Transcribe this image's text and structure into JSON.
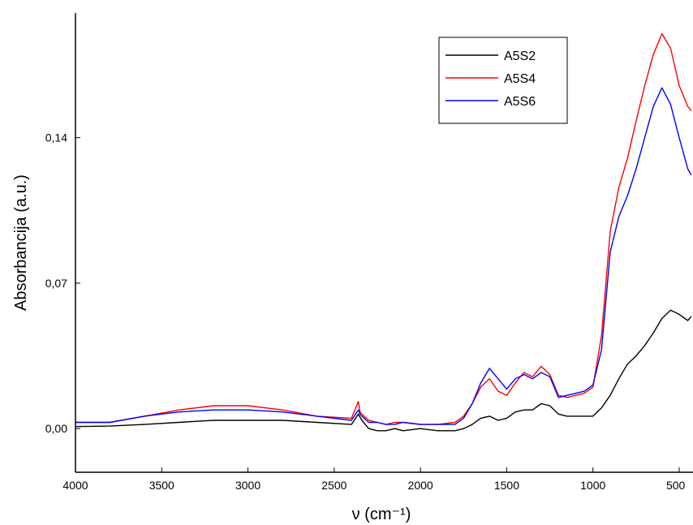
{
  "chart_data": {
    "type": "line",
    "xlabel": "ν (cm⁻¹)",
    "ylabel": "Absorbancija (a.u.)",
    "xlim": [
      4000,
      420
    ],
    "ylim": [
      -0.021,
      0.2
    ],
    "x_reversed": true,
    "x_ticks": [
      {
        "value": 4000,
        "label": "4000"
      },
      {
        "value": 3500,
        "label": "3500"
      },
      {
        "value": 3000,
        "label": "3000"
      },
      {
        "value": 2500,
        "label": "2500"
      },
      {
        "value": 2000,
        "label": "2000"
      },
      {
        "value": 1500,
        "label": "1500"
      },
      {
        "value": 1000,
        "label": "1000"
      },
      {
        "value": 500,
        "label": "500"
      }
    ],
    "y_ticks": [
      {
        "value": 0.0,
        "label": "0,00"
      },
      {
        "value": 0.07,
        "label": "0,07"
      },
      {
        "value": 0.14,
        "label": "0,14"
      }
    ],
    "grid": false,
    "legend": "top-right",
    "series": [
      {
        "name": "A5S2",
        "color": "#000000",
        "x": [
          4000,
          3800,
          3600,
          3400,
          3200,
          3000,
          2800,
          2600,
          2400,
          2360,
          2340,
          2300,
          2250,
          2200,
          2150,
          2100,
          2000,
          1900,
          1800,
          1750,
          1700,
          1650,
          1600,
          1550,
          1500,
          1450,
          1400,
          1350,
          1300,
          1250,
          1200,
          1150,
          1100,
          1050,
          1000,
          950,
          900,
          850,
          800,
          750,
          700,
          650,
          600,
          550,
          500,
          450,
          430
        ],
        "values": [
          0.001,
          0.0012,
          0.002,
          0.003,
          0.004,
          0.004,
          0.004,
          0.003,
          0.002,
          0.007,
          0.004,
          0.0,
          -0.001,
          -0.001,
          0.0,
          -0.001,
          0.0,
          -0.001,
          -0.001,
          0.0,
          0.002,
          0.005,
          0.006,
          0.004,
          0.005,
          0.008,
          0.009,
          0.009,
          0.012,
          0.011,
          0.007,
          0.006,
          0.006,
          0.006,
          0.006,
          0.01,
          0.016,
          0.024,
          0.031,
          0.035,
          0.04,
          0.046,
          0.053,
          0.057,
          0.055,
          0.052,
          0.054
        ]
      },
      {
        "name": "A5S4",
        "color": "#ff0000",
        "x": [
          4000,
          3800,
          3600,
          3400,
          3200,
          3000,
          2800,
          2600,
          2400,
          2360,
          2350,
          2340,
          2300,
          2250,
          2200,
          2150,
          2100,
          2000,
          1900,
          1800,
          1750,
          1700,
          1650,
          1600,
          1550,
          1500,
          1450,
          1400,
          1350,
          1300,
          1250,
          1200,
          1150,
          1100,
          1050,
          1000,
          950,
          900,
          850,
          800,
          750,
          700,
          650,
          600,
          550,
          500,
          450,
          430
        ],
        "values": [
          0.003,
          0.003,
          0.006,
          0.009,
          0.011,
          0.011,
          0.009,
          0.006,
          0.005,
          0.013,
          0.008,
          0.007,
          0.004,
          0.003,
          0.002,
          0.003,
          0.003,
          0.002,
          0.002,
          0.003,
          0.006,
          0.012,
          0.02,
          0.024,
          0.018,
          0.016,
          0.022,
          0.027,
          0.025,
          0.03,
          0.026,
          0.016,
          0.015,
          0.016,
          0.017,
          0.02,
          0.045,
          0.095,
          0.116,
          0.13,
          0.148,
          0.165,
          0.18,
          0.19,
          0.183,
          0.165,
          0.155,
          0.153
        ]
      },
      {
        "name": "A5S6",
        "color": "#0000ff",
        "x": [
          4000,
          3800,
          3600,
          3400,
          3200,
          3000,
          2800,
          2600,
          2400,
          2360,
          2350,
          2340,
          2300,
          2250,
          2200,
          2150,
          2100,
          2000,
          1900,
          1800,
          1750,
          1700,
          1650,
          1600,
          1550,
          1500,
          1450,
          1400,
          1350,
          1300,
          1250,
          1200,
          1150,
          1100,
          1050,
          1000,
          950,
          900,
          850,
          800,
          750,
          700,
          650,
          600,
          550,
          500,
          450,
          430
        ],
        "values": [
          0.003,
          0.003,
          0.006,
          0.008,
          0.009,
          0.009,
          0.008,
          0.006,
          0.004,
          0.009,
          0.007,
          0.006,
          0.003,
          0.003,
          0.002,
          0.002,
          0.003,
          0.002,
          0.002,
          0.002,
          0.005,
          0.012,
          0.022,
          0.029,
          0.024,
          0.019,
          0.024,
          0.026,
          0.024,
          0.027,
          0.025,
          0.015,
          0.016,
          0.017,
          0.018,
          0.021,
          0.038,
          0.085,
          0.102,
          0.112,
          0.125,
          0.14,
          0.155,
          0.164,
          0.156,
          0.14,
          0.125,
          0.122
        ]
      }
    ]
  }
}
